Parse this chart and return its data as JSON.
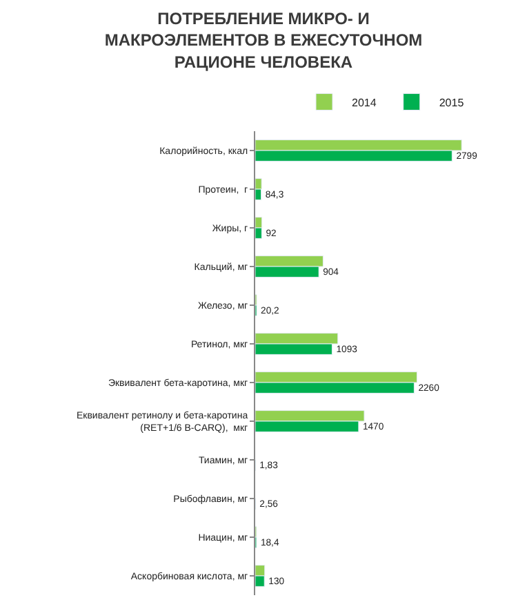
{
  "chart_data": {
    "type": "bar",
    "orientation": "horizontal",
    "title": "ПОТРЕБЛЕНИЕ МИКРО- И МАКРОЭЛЕМЕНТОВ В ЕЖЕСУТОЧНОМ РАЦИОНЕ ЧЕЛОВЕКА",
    "categories": [
      "Калорийность, ккал",
      "Протеин,  г",
      "Жиры, г",
      "Кальций, мг",
      "Железо, мг",
      "Ретинол, мкг",
      "Эквивалент бета-каротина, мкг",
      "Еквивалент ретинолу и бета-каротина (RET+1/6 B-CARQ),  мкг",
      "Тиамин, мг",
      "Рыбофлавин, мг",
      "Ниацин, мг",
      "Аскорбиновая кислота, мг"
    ],
    "series": [
      {
        "name": "2014",
        "color": "#92d050",
        "values": [
          2935,
          90,
          95,
          965,
          20,
          1175,
          2300,
          1550,
          null,
          null,
          18,
          135
        ]
      },
      {
        "name": "2015",
        "color": "#00b050",
        "values": [
          2799,
          84.3,
          92,
          904,
          20.2,
          1093,
          2260,
          1470,
          1.83,
          2.56,
          18.4,
          130
        ],
        "value_labels": [
          "2799",
          "84,3",
          "92",
          "904",
          "20,2",
          "1093",
          "2260",
          "1470",
          "1,83",
          "2,56",
          "18,4",
          "130"
        ]
      }
    ],
    "legend": "top"
  }
}
